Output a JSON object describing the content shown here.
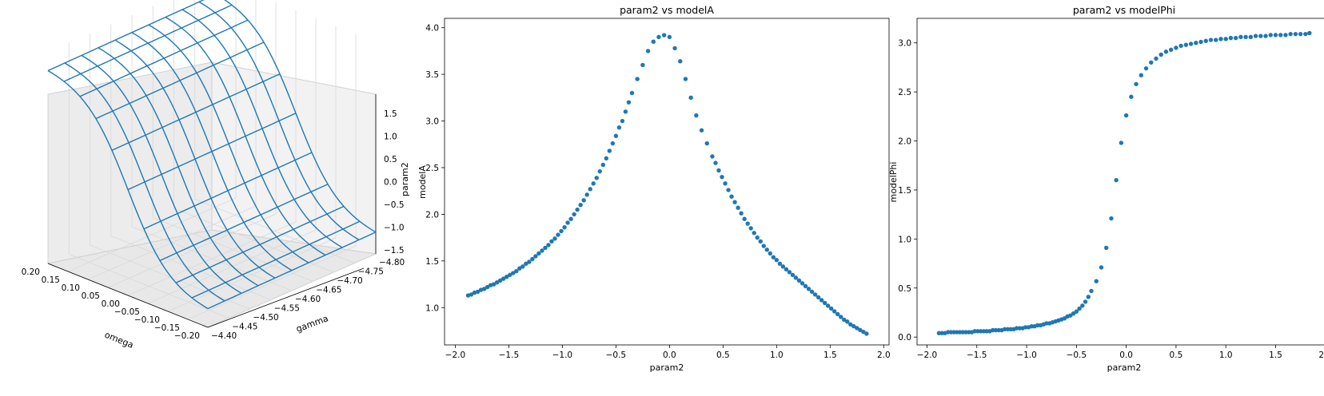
{
  "colors": {
    "series": "#1f77b4",
    "pane": "#f2f2f2",
    "pane_grid": "#d8d8d8",
    "axis": "#000000"
  },
  "chart_data": [
    {
      "type": "surface3d",
      "title": "",
      "xlabel": "omega",
      "ylabel": "gamma",
      "zlabel": "param2",
      "x_ticks": [
        "0.20",
        "0.15",
        "0.10",
        "0.05",
        "0.00",
        "−0.05",
        "−0.10",
        "−0.15",
        "−0.20"
      ],
      "y_ticks": [
        "−4.40",
        "−4.45",
        "−4.50",
        "−4.55",
        "−4.60",
        "−4.65",
        "−4.70",
        "−4.75",
        "−4.80"
      ],
      "z_ticks": [
        "1.5",
        "1.0",
        "0.5",
        "0.0",
        "−0.5",
        "−1.0",
        "−1.5"
      ],
      "xlim": [
        -0.2,
        0.2
      ],
      "ylim": [
        -4.8,
        -4.4
      ],
      "zlim": [
        -1.8,
        1.8
      ],
      "grid": true,
      "wireframe_rows": 10,
      "wireframe_cols": 10
    },
    {
      "type": "scatter",
      "title": "param2 vs modelA",
      "xlabel": "param2",
      "ylabel": "modelA",
      "xlim": [
        -2.1,
        2.05
      ],
      "ylim": [
        0.6,
        4.1
      ],
      "x_ticks": [
        "−2.0",
        "−1.5",
        "−1.0",
        "−0.5",
        "0.0",
        "0.5",
        "1.0",
        "1.5",
        "2.0"
      ],
      "y_ticks": [
        "1.0",
        "1.5",
        "2.0",
        "2.5",
        "3.0",
        "3.5",
        "4.0"
      ],
      "x_tick_values": [
        -2.0,
        -1.5,
        -1.0,
        -0.5,
        0.0,
        0.5,
        1.0,
        1.5,
        2.0
      ],
      "y_tick_values": [
        1.0,
        1.5,
        2.0,
        2.5,
        3.0,
        3.5,
        4.0
      ],
      "points_x": [
        -1.88,
        -1.85,
        -1.82,
        -1.79,
        -1.76,
        -1.73,
        -1.7,
        -1.67,
        -1.64,
        -1.61,
        -1.58,
        -1.55,
        -1.52,
        -1.49,
        -1.46,
        -1.43,
        -1.4,
        -1.37,
        -1.34,
        -1.31,
        -1.28,
        -1.25,
        -1.22,
        -1.19,
        -1.16,
        -1.13,
        -1.1,
        -1.07,
        -1.04,
        -1.01,
        -0.98,
        -0.95,
        -0.92,
        -0.89,
        -0.86,
        -0.83,
        -0.8,
        -0.77,
        -0.74,
        -0.71,
        -0.68,
        -0.65,
        -0.62,
        -0.59,
        -0.56,
        -0.53,
        -0.5,
        -0.47,
        -0.44,
        -0.41,
        -0.38,
        -0.35,
        -0.3,
        -0.25,
        -0.2,
        -0.15,
        -0.1,
        -0.05,
        0.0,
        0.05,
        0.1,
        0.15,
        0.2,
        0.25,
        0.3,
        0.35,
        0.4,
        0.43,
        0.46,
        0.49,
        0.52,
        0.55,
        0.58,
        0.61,
        0.64,
        0.67,
        0.7,
        0.73,
        0.76,
        0.79,
        0.82,
        0.85,
        0.88,
        0.91,
        0.94,
        0.97,
        1.0,
        1.03,
        1.06,
        1.09,
        1.12,
        1.15,
        1.18,
        1.21,
        1.24,
        1.27,
        1.3,
        1.33,
        1.36,
        1.39,
        1.42,
        1.45,
        1.48,
        1.51,
        1.54,
        1.57,
        1.6,
        1.63,
        1.66,
        1.69,
        1.72,
        1.75,
        1.78,
        1.81,
        1.84
      ],
      "points_y": [
        1.13,
        1.14,
        1.16,
        1.17,
        1.19,
        1.2,
        1.22,
        1.24,
        1.25,
        1.27,
        1.29,
        1.31,
        1.33,
        1.35,
        1.37,
        1.39,
        1.42,
        1.44,
        1.47,
        1.49,
        1.52,
        1.55,
        1.58,
        1.61,
        1.64,
        1.67,
        1.71,
        1.74,
        1.78,
        1.82,
        1.86,
        1.91,
        1.95,
        2.0,
        2.05,
        2.1,
        2.15,
        2.21,
        2.27,
        2.33,
        2.39,
        2.46,
        2.53,
        2.6,
        2.68,
        2.76,
        2.84,
        2.93,
        3.0,
        3.1,
        3.2,
        3.3,
        3.45,
        3.6,
        3.75,
        3.85,
        3.9,
        3.92,
        3.9,
        3.78,
        3.64,
        3.45,
        3.25,
        3.06,
        2.9,
        2.76,
        2.62,
        2.55,
        2.47,
        2.4,
        2.33,
        2.26,
        2.19,
        2.13,
        2.07,
        2.01,
        1.95,
        1.9,
        1.85,
        1.8,
        1.75,
        1.71,
        1.66,
        1.62,
        1.58,
        1.54,
        1.51,
        1.47,
        1.44,
        1.41,
        1.38,
        1.35,
        1.32,
        1.29,
        1.26,
        1.23,
        1.2,
        1.17,
        1.14,
        1.11,
        1.08,
        1.05,
        1.02,
        0.99,
        0.96,
        0.93,
        0.9,
        0.87,
        0.85,
        0.82,
        0.8,
        0.78,
        0.76,
        0.74,
        0.72
      ]
    },
    {
      "type": "scatter",
      "title": "param2 vs modelPhi",
      "xlabel": "param2",
      "ylabel": "modelPhi",
      "xlim": [
        -2.1,
        2.05
      ],
      "ylim": [
        -0.08,
        3.25
      ],
      "x_ticks": [
        "−2.0",
        "−1.5",
        "−1.0",
        "−0.5",
        "0.0",
        "0.5",
        "1.0",
        "1.5",
        "2.0"
      ],
      "y_ticks": [
        "0.0",
        "0.5",
        "1.0",
        "1.5",
        "2.0",
        "2.5",
        "3.0"
      ],
      "x_tick_values": [
        -2.0,
        -1.5,
        -1.0,
        -0.5,
        0.0,
        0.5,
        1.0,
        1.5,
        2.0
      ],
      "y_tick_values": [
        0.0,
        0.5,
        1.0,
        1.5,
        2.0,
        2.5,
        3.0
      ],
      "points_x": [
        -1.88,
        -1.85,
        -1.82,
        -1.79,
        -1.76,
        -1.73,
        -1.7,
        -1.67,
        -1.64,
        -1.61,
        -1.58,
        -1.55,
        -1.52,
        -1.49,
        -1.46,
        -1.43,
        -1.4,
        -1.37,
        -1.34,
        -1.31,
        -1.28,
        -1.25,
        -1.22,
        -1.19,
        -1.16,
        -1.13,
        -1.1,
        -1.07,
        -1.04,
        -1.01,
        -0.98,
        -0.95,
        -0.92,
        -0.89,
        -0.86,
        -0.83,
        -0.8,
        -0.77,
        -0.74,
        -0.71,
        -0.68,
        -0.65,
        -0.62,
        -0.59,
        -0.56,
        -0.53,
        -0.5,
        -0.47,
        -0.44,
        -0.41,
        -0.38,
        -0.35,
        -0.3,
        -0.25,
        -0.2,
        -0.15,
        -0.1,
        -0.05,
        0.0,
        0.05,
        0.1,
        0.15,
        0.2,
        0.25,
        0.3,
        0.35,
        0.4,
        0.45,
        0.5,
        0.55,
        0.6,
        0.65,
        0.7,
        0.75,
        0.8,
        0.85,
        0.9,
        0.95,
        1.0,
        1.05,
        1.1,
        1.15,
        1.2,
        1.25,
        1.3,
        1.35,
        1.4,
        1.45,
        1.5,
        1.55,
        1.6,
        1.65,
        1.7,
        1.75,
        1.8,
        1.84
      ],
      "points_y": [
        0.04,
        0.04,
        0.04,
        0.05,
        0.05,
        0.05,
        0.05,
        0.05,
        0.05,
        0.05,
        0.05,
        0.05,
        0.06,
        0.06,
        0.06,
        0.06,
        0.06,
        0.06,
        0.07,
        0.07,
        0.07,
        0.07,
        0.08,
        0.08,
        0.08,
        0.08,
        0.09,
        0.09,
        0.09,
        0.1,
        0.1,
        0.11,
        0.11,
        0.12,
        0.12,
        0.13,
        0.14,
        0.14,
        0.15,
        0.16,
        0.17,
        0.18,
        0.19,
        0.21,
        0.22,
        0.24,
        0.26,
        0.29,
        0.32,
        0.36,
        0.41,
        0.47,
        0.57,
        0.71,
        0.91,
        1.21,
        1.6,
        1.98,
        2.26,
        2.45,
        2.58,
        2.67,
        2.74,
        2.8,
        2.84,
        2.88,
        2.91,
        2.93,
        2.95,
        2.97,
        2.98,
        2.99,
        3.0,
        3.01,
        3.02,
        3.03,
        3.03,
        3.04,
        3.04,
        3.05,
        3.05,
        3.06,
        3.06,
        3.06,
        3.07,
        3.07,
        3.07,
        3.08,
        3.08,
        3.08,
        3.08,
        3.09,
        3.09,
        3.09,
        3.09,
        3.1
      ]
    }
  ]
}
